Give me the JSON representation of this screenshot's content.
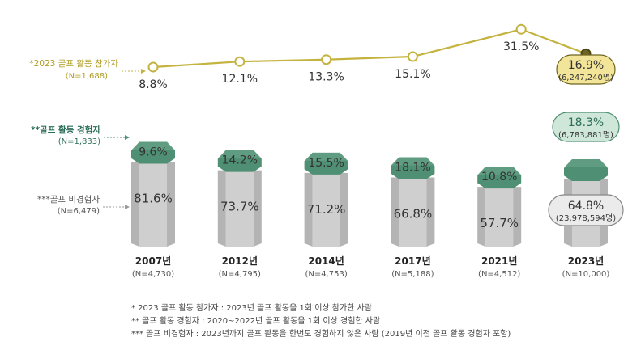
{
  "chart_data": {
    "type": "bar",
    "categories": [
      "2007년",
      "2012년",
      "2014년",
      "2017년",
      "2021년",
      "2023년"
    ],
    "sample_sizes": [
      "(N=4,730)",
      "(N=4,795)",
      "(N=4,753)",
      "(N=5,188)",
      "(N=4,512)",
      "(N=10,000)"
    ],
    "line_series": {
      "name": "*2023 골프 활동 참가자",
      "n_label": "(N=1,688)",
      "values": [
        8.8,
        12.1,
        13.3,
        15.1,
        31.5,
        16.9
      ],
      "labels": [
        "8.8%",
        "12.1%",
        "13.3%",
        "15.1%",
        "31.5%",
        "16.9%"
      ],
      "highlight_sub": "(6,247,240명)"
    },
    "series": [
      {
        "name": "**골프 활동 경험자",
        "n_label": "(N=1,833)",
        "values": [
          9.6,
          14.2,
          15.5,
          18.1,
          10.8,
          18.3
        ],
        "labels": [
          "9.6%",
          "14.2%",
          "15.5%",
          "18.1%",
          "10.8%",
          "18.3%"
        ],
        "highlight_sub": "(6,783,881명)"
      },
      {
        "name": "***골프 비경험자",
        "n_label": "(N=6,479)",
        "values": [
          81.6,
          73.7,
          71.2,
          66.8,
          57.7,
          64.8
        ],
        "labels": [
          "81.6%",
          "73.7%",
          "71.2%",
          "66.8%",
          "57.7%",
          "64.8%"
        ],
        "highlight_sub": "(23,978,594명)"
      }
    ],
    "footnotes": [
      "* 2023 골프 활동 참가자 : 2023년 골프 활동을 1회 이상 참가한 사람",
      "** 골프 활동 경험자 : 2020~2022년 골프 활동을 1회 이상 경험한 사람",
      "*** 골프 비경험자 : 2023년까지 골프 활동을 한번도 경험하지 않은 사람 (2019년 이전 골프 활동 경험자 포함)"
    ],
    "colors": {
      "line": "#c4b33f",
      "marker_fill": "#ffffff",
      "last_marker_fill": "#6e6520",
      "line_label_highlight_bg": "#f2e59a",
      "experienced_top": "#4f8f73",
      "experienced_side": "#6fa88d",
      "experienced_highlight_bg": "#cfe7d8",
      "experienced_text": "#2d6e5a",
      "nonexp_face": "#cfcfcf",
      "nonexp_side": "#b4b4b4",
      "nonexp_highlight_bg": "#ebebeb",
      "text": "#333333",
      "muted": "#555555"
    }
  }
}
